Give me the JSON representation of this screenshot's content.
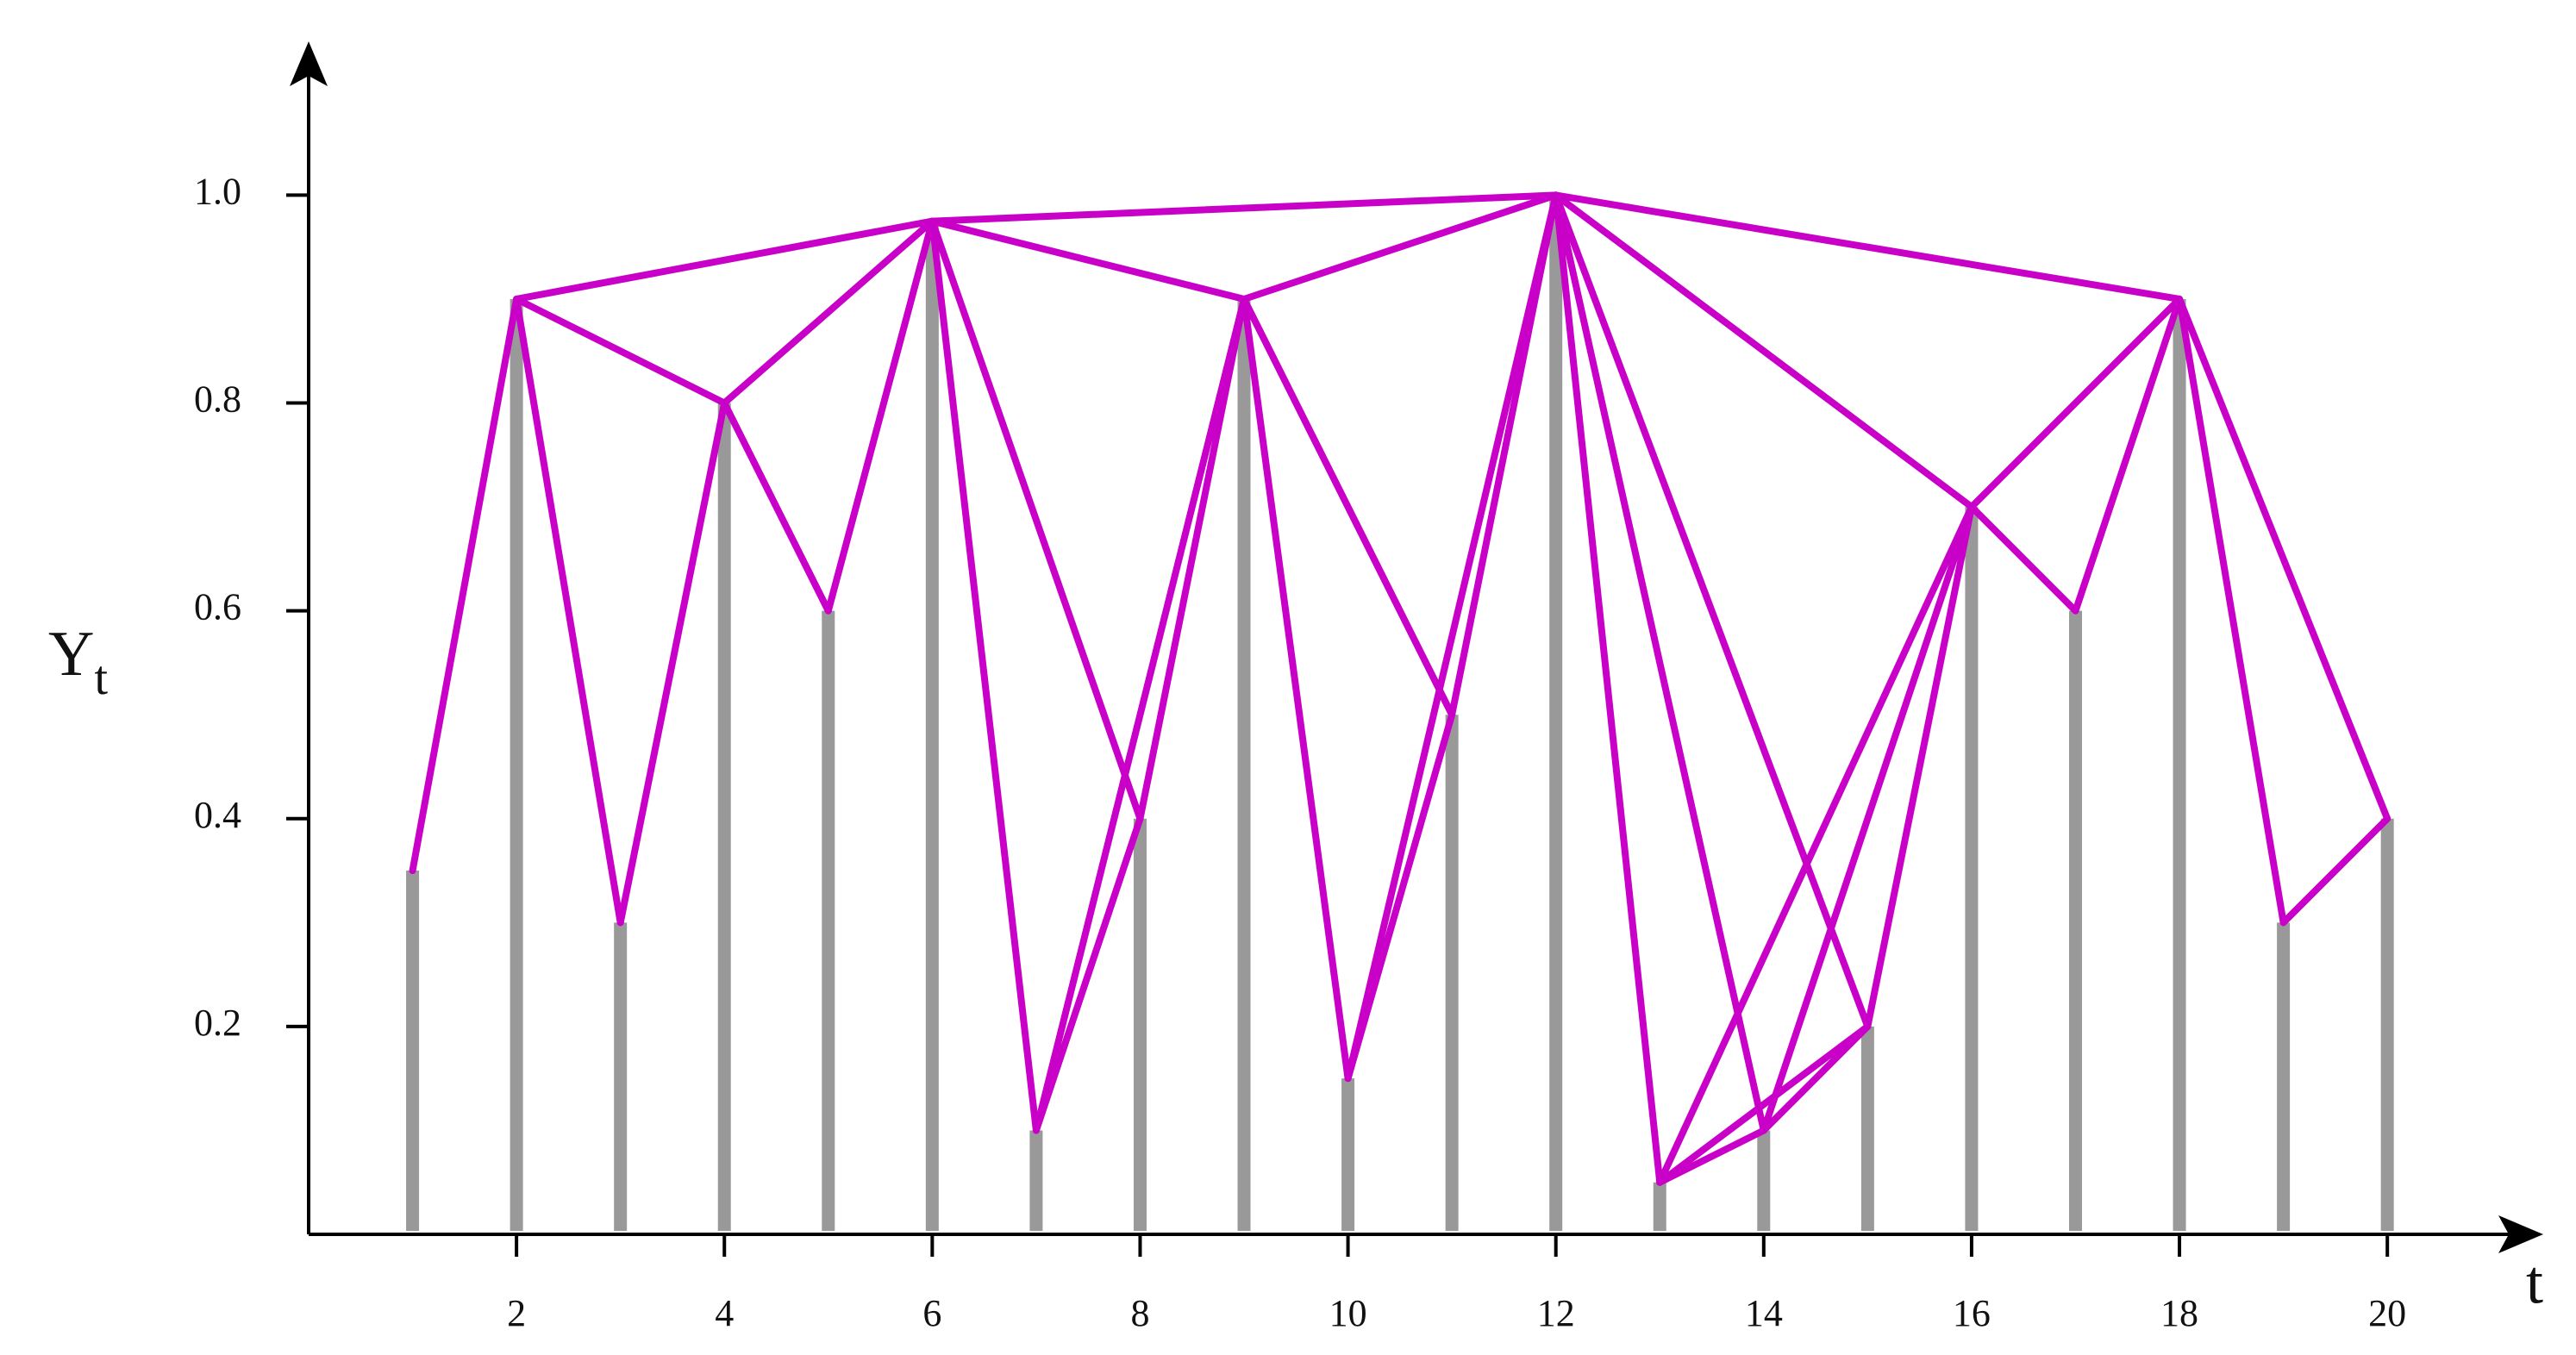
{
  "chart_data": {
    "type": "visibility-graph",
    "x_label": "t",
    "y_label": "Y",
    "y_label_subscript": "t",
    "x": [
      1,
      2,
      3,
      4,
      5,
      6,
      7,
      8,
      9,
      10,
      11,
      12,
      13,
      14,
      15,
      16,
      17,
      18,
      19,
      20
    ],
    "values": [
      0.35,
      0.9,
      0.3,
      0.8,
      0.6,
      0.975,
      0.1,
      0.4,
      0.9,
      0.15,
      0.5,
      1.0,
      0.05,
      0.1,
      0.2,
      0.7,
      0.6,
      0.9,
      0.3,
      0.4
    ],
    "bar_color": "#999999",
    "edge_color": "#c800c8",
    "xlim": [
      0,
      21.5
    ],
    "ylim": [
      0,
      1.148
    ],
    "xticks": [
      2,
      4,
      6,
      8,
      10,
      12,
      14,
      16,
      18,
      20
    ],
    "yticks": [
      0.2,
      0.4,
      0.6,
      0.8,
      {
        "value": 1,
        "label": "1.0"
      }
    ]
  }
}
